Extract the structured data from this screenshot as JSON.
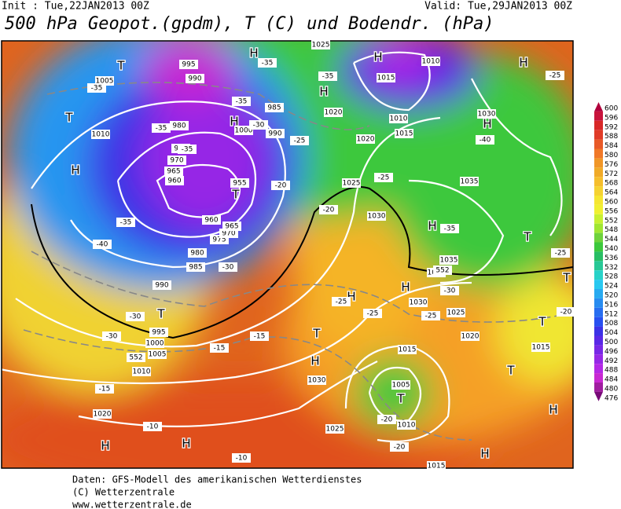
{
  "header": {
    "init": "Init : Tue,22JAN2013 00Z",
    "valid": "Valid: Tue,29JAN2013 00Z",
    "title": "500 hPa Geopot.(gpdm), T (C) und Bodendr. (hPa)"
  },
  "map": {
    "labels": [
      "H",
      "H",
      "H",
      "H",
      "H",
      "H",
      "H",
      "H",
      "H",
      "H",
      "H",
      "H",
      "H",
      "H",
      "H",
      "T",
      "T",
      "T",
      "T",
      "T",
      "T",
      "T",
      "T",
      "T",
      "T",
      "1025",
      "1010",
      "1005",
      "995",
      "990",
      "1015",
      "1020",
      "1010",
      "1015",
      "1030",
      "1000",
      "985",
      "990",
      "980",
      "975",
      "970",
      "965",
      "960",
      "955",
      "1010",
      "1020",
      "1025",
      "1030",
      "1035",
      "1035",
      "1030",
      "1030",
      "1025",
      "1020",
      "1015",
      "1015",
      "1005",
      "1010",
      "1025",
      "1030",
      "1020",
      "1010",
      "1005",
      "1000",
      "995",
      "990",
      "985",
      "980",
      "975",
      "970",
      "965",
      "960",
      "1015",
      "-35",
      "-35",
      "-35",
      "-35",
      "-35",
      "-30",
      "-35",
      "-25",
      "-20",
      "-40",
      "-25",
      "-25",
      "-35",
      "-40",
      "-35",
      "-30",
      "-30",
      "-30",
      "-25",
      "-25",
      "-30",
      "-25",
      "-25",
      "-20",
      "-20",
      "-15",
      "-15",
      "-15",
      "-10",
      "-10",
      "-20",
      "-20",
      "552",
      "552"
    ]
  },
  "colorbar": {
    "labels": [
      600,
      596,
      592,
      588,
      584,
      580,
      576,
      572,
      568,
      564,
      560,
      556,
      552,
      548,
      544,
      540,
      536,
      532,
      528,
      524,
      520,
      516,
      512,
      508,
      504,
      500,
      496,
      492,
      488,
      484,
      480,
      476
    ],
    "colors": [
      "#b0003c",
      "#c8143c",
      "#d82828",
      "#e03c28",
      "#e85a28",
      "#f07828",
      "#f09628",
      "#f0aa28",
      "#f5be2d",
      "#f5d232",
      "#f5e632",
      "#f0f032",
      "#c8f032",
      "#a0e632",
      "#6ed23c",
      "#3cc83c",
      "#28be64",
      "#28c896",
      "#28d2c8",
      "#28c8f0",
      "#28aaf0",
      "#288cf0",
      "#286ef0",
      "#2850f0",
      "#3c32e6",
      "#5a28e6",
      "#7828e6",
      "#9628e6",
      "#b428e6",
      "#c828d2",
      "#a01ea0",
      "#780a78"
    ]
  },
  "footer": [
    "Daten: GFS-Modell des amerikanischen Wetterdienstes",
    "(C) Wetterzentrale",
    "www.wetterzentrale.de"
  ]
}
